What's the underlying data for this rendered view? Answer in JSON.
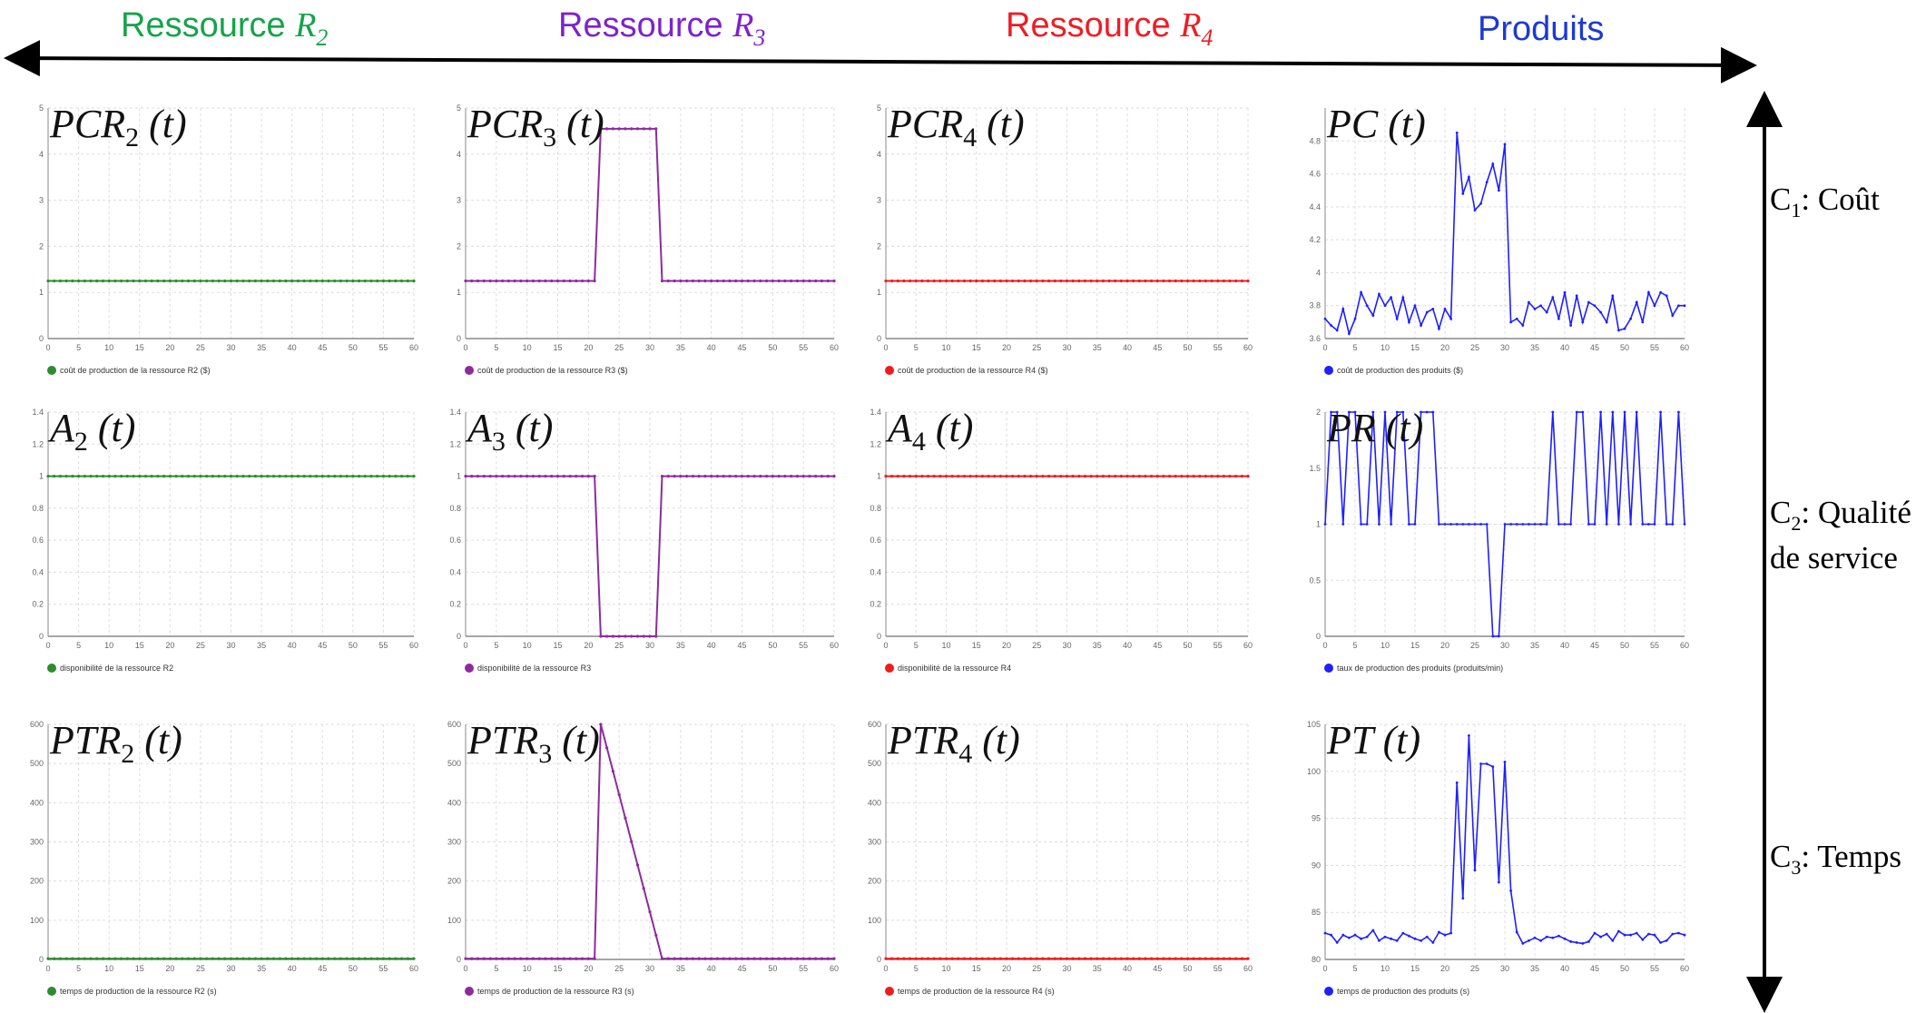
{
  "headers": {
    "columns": [
      {
        "text": "Ressource ",
        "sym": "R",
        "sub": "2",
        "color": "#16a34a"
      },
      {
        "text": "Ressource ",
        "sym": "R",
        "sub": "3",
        "color": "#7e22ce"
      },
      {
        "text": "Ressource ",
        "sym": "R",
        "sub": "4",
        "color": "#ef1c24"
      },
      {
        "text": "Produits",
        "sym": "",
        "sub": "",
        "color": "#1d39d4"
      }
    ],
    "rows": [
      {
        "lines": [
          {
            "pre": "C",
            "sub": "1",
            "post": ": Coût"
          }
        ]
      },
      {
        "lines": [
          {
            "pre": "C",
            "sub": "2",
            "post": ": Qualité"
          },
          {
            "pre": "de service",
            "sub": "",
            "post": ""
          }
        ]
      },
      {
        "lines": [
          {
            "pre": "C",
            "sub": "3",
            "post": ":  Temps"
          }
        ]
      }
    ]
  },
  "colors": {
    "r2": "#2e8b2e",
    "r3": "#8e2a9e",
    "r4": "#ee1c1c",
    "prod": "#1f1fff",
    "axis": "#888888",
    "grid": "#dddddd"
  },
  "chart_data": [
    {
      "id": "pcr2",
      "type": "line",
      "label": {
        "base": "PCR",
        "sub": "2",
        "post": " (t)"
      },
      "legend": "coût de production de la ressource R2 ($)",
      "color": "#2e8b2e",
      "xlim": [
        0,
        60
      ],
      "ylim": [
        0,
        5
      ],
      "yticks": [
        0,
        1,
        2,
        3,
        4,
        5
      ],
      "x": [
        0,
        60
      ],
      "values": [
        1.25,
        1.25
      ]
    },
    {
      "id": "pcr3",
      "type": "line",
      "label": {
        "base": "PCR",
        "sub": "3",
        "post": " (t)"
      },
      "legend": "coût de production de la ressource R3 ($)",
      "color": "#8e2a9e",
      "xlim": [
        0,
        60
      ],
      "ylim": [
        0,
        5
      ],
      "yticks": [
        0,
        1,
        2,
        3,
        4,
        5
      ],
      "x": [
        0,
        21,
        22,
        31,
        32,
        60
      ],
      "values": [
        1.25,
        1.25,
        4.55,
        4.55,
        1.25,
        1.25
      ]
    },
    {
      "id": "pcr4",
      "type": "line",
      "label": {
        "base": "PCR",
        "sub": "4",
        "post": " (t)"
      },
      "legend": "coût de production de la ressource R4 ($)",
      "color": "#ee1c1c",
      "xlim": [
        0,
        60
      ],
      "ylim": [
        0,
        5
      ],
      "yticks": [
        0,
        1,
        2,
        3,
        4,
        5
      ],
      "x": [
        0,
        60
      ],
      "values": [
        1.25,
        1.25
      ]
    },
    {
      "id": "pc",
      "type": "line",
      "label": {
        "base": "PC",
        "sub": "",
        "post": "  (t)"
      },
      "legend": "coût de production des produits ($)",
      "color": "#1f1fff",
      "xlim": [
        0,
        60
      ],
      "ylim": [
        3.6,
        5
      ],
      "yticks": [
        3.6,
        3.8,
        4,
        4.2,
        4.4,
        4.6,
        4.8
      ],
      "ytick_labels": [
        "3.6",
        "3.8",
        "4",
        "4.2",
        "4.4",
        "4.6",
        "4.8"
      ],
      "x": [
        0,
        1,
        2,
        3,
        4,
        5,
        6,
        7,
        8,
        9,
        10,
        11,
        12,
        13,
        14,
        15,
        16,
        17,
        18,
        19,
        20,
        21,
        22,
        23,
        24,
        25,
        26,
        27,
        28,
        29,
        30,
        31,
        32,
        33,
        34,
        35,
        36,
        37,
        38,
        39,
        40,
        41,
        42,
        43,
        44,
        45,
        46,
        47,
        48,
        49,
        50,
        51,
        52,
        53,
        54,
        55,
        56,
        57,
        58,
        59,
        60
      ],
      "values": [
        3.72,
        3.68,
        3.65,
        3.78,
        3.63,
        3.72,
        3.88,
        3.8,
        3.74,
        3.87,
        3.8,
        3.85,
        3.72,
        3.85,
        3.7,
        3.8,
        3.68,
        3.76,
        3.78,
        3.66,
        3.78,
        3.72,
        4.85,
        4.48,
        4.58,
        4.38,
        4.42,
        4.55,
        4.66,
        4.5,
        4.78,
        3.7,
        3.72,
        3.68,
        3.82,
        3.78,
        3.8,
        3.76,
        3.85,
        3.72,
        3.88,
        3.68,
        3.86,
        3.7,
        3.82,
        3.8,
        3.76,
        3.7,
        3.86,
        3.65,
        3.66,
        3.72,
        3.82,
        3.7,
        3.88,
        3.8,
        3.88,
        3.86,
        3.74,
        3.8,
        3.8
      ]
    },
    {
      "id": "a2",
      "type": "line",
      "label": {
        "base": "A",
        "sub": "2",
        "post": " (t)"
      },
      "legend": "disponibilité de la ressource R2",
      "color": "#2e8b2e",
      "xlim": [
        0,
        60
      ],
      "ylim": [
        0,
        1.4
      ],
      "yticks": [
        0,
        0.2,
        0.4,
        0.6,
        0.8,
        1,
        1.2,
        1.4
      ],
      "ytick_labels": [
        "0",
        "0.2",
        "0.4",
        "0.6",
        "0.8",
        "1",
        "1.2",
        "1.4"
      ],
      "x": [
        0,
        60
      ],
      "values": [
        1,
        1
      ]
    },
    {
      "id": "a3",
      "type": "line",
      "label": {
        "base": "A",
        "sub": "3",
        "post": " (t)"
      },
      "legend": "disponibilité de la ressource R3",
      "color": "#8e2a9e",
      "xlim": [
        0,
        60
      ],
      "ylim": [
        0,
        1.4
      ],
      "yticks": [
        0,
        0.2,
        0.4,
        0.6,
        0.8,
        1,
        1.2,
        1.4
      ],
      "ytick_labels": [
        "0",
        "0.2",
        "0.4",
        "0.6",
        "0.8",
        "1",
        "1.2",
        "1.4"
      ],
      "x": [
        0,
        21,
        22,
        31,
        32,
        60
      ],
      "values": [
        1,
        1,
        0,
        0,
        1,
        1
      ]
    },
    {
      "id": "a4",
      "type": "line",
      "label": {
        "base": "A",
        "sub": "4",
        "post": " (t)"
      },
      "legend": "disponibilité de la ressource R4",
      "color": "#ee1c1c",
      "xlim": [
        0,
        60
      ],
      "ylim": [
        0,
        1.4
      ],
      "yticks": [
        0,
        0.2,
        0.4,
        0.6,
        0.8,
        1,
        1.2,
        1.4
      ],
      "ytick_labels": [
        "0",
        "0.2",
        "0.4",
        "0.6",
        "0.8",
        "1",
        "1.2",
        "1.4"
      ],
      "x": [
        0,
        60
      ],
      "values": [
        1,
        1
      ]
    },
    {
      "id": "pr",
      "type": "line",
      "label": {
        "base": "PR",
        "sub": "",
        "post": "  (t)"
      },
      "legend": "taux de production des produits (produits/min)",
      "color": "#1f1fff",
      "xlim": [
        0,
        60
      ],
      "ylim": [
        0,
        2
      ],
      "yticks": [
        0,
        0.5,
        1,
        1.5,
        2
      ],
      "ytick_labels": [
        "0",
        "0.5",
        "1",
        "1.5",
        "2"
      ],
      "x": [
        0,
        1,
        2,
        3,
        4,
        5,
        6,
        7,
        8,
        9,
        10,
        11,
        12,
        13,
        14,
        15,
        16,
        17,
        18,
        19,
        20,
        21,
        22,
        23,
        24,
        25,
        26,
        27,
        28,
        29,
        30,
        31,
        32,
        33,
        34,
        35,
        36,
        37,
        38,
        39,
        40,
        41,
        42,
        43,
        44,
        45,
        46,
        47,
        48,
        49,
        50,
        51,
        52,
        53,
        54,
        55,
        56,
        57,
        58,
        59,
        60
      ],
      "values": [
        1,
        2,
        2,
        1,
        2,
        2,
        1,
        1,
        2,
        1,
        2,
        1,
        2,
        2,
        1,
        1,
        2,
        2,
        2,
        1,
        1,
        1,
        1,
        1,
        1,
        1,
        1,
        1,
        0,
        0,
        1,
        1,
        1,
        1,
        1,
        1,
        1,
        1,
        2,
        1,
        1,
        1,
        2,
        2,
        1,
        1,
        2,
        1,
        2,
        1,
        2,
        1,
        2,
        1,
        1,
        1,
        2,
        1,
        1,
        2,
        1
      ]
    },
    {
      "id": "ptr2",
      "type": "line",
      "label": {
        "base": "PTR",
        "sub": "2",
        "post": " (t)"
      },
      "legend": "temps de production de la ressource R2 (s)",
      "color": "#2e8b2e",
      "xlim": [
        0,
        60
      ],
      "ylim": [
        0,
        600
      ],
      "yticks": [
        0,
        100,
        200,
        300,
        400,
        500,
        600
      ],
      "x": [
        0,
        60
      ],
      "values": [
        2,
        2
      ]
    },
    {
      "id": "ptr3",
      "type": "line",
      "label": {
        "base": "PTR",
        "sub": "3",
        "post": " (t)"
      },
      "legend": "temps de production de la ressource R3 (s)",
      "color": "#8e2a9e",
      "xlim": [
        0,
        60
      ],
      "ylim": [
        0,
        600
      ],
      "yticks": [
        0,
        100,
        200,
        300,
        400,
        500,
        600
      ],
      "x": [
        0,
        21,
        22,
        32,
        33,
        60
      ],
      "values": [
        2,
        2,
        600,
        2,
        2,
        2
      ]
    },
    {
      "id": "ptr4",
      "type": "line",
      "label": {
        "base": "PTR",
        "sub": "4",
        "post": " (t)"
      },
      "legend": "temps de production de la ressource R4 (s)",
      "color": "#ee1c1c",
      "xlim": [
        0,
        60
      ],
      "ylim": [
        0,
        600
      ],
      "yticks": [
        0,
        100,
        200,
        300,
        400,
        500,
        600
      ],
      "x": [
        0,
        60
      ],
      "values": [
        2,
        2
      ]
    },
    {
      "id": "pt",
      "type": "line",
      "label": {
        "base": "PT",
        "sub": "",
        "post": " (t)"
      },
      "legend": "temps de production des produits (s)",
      "color": "#1f1fff",
      "xlim": [
        0,
        60
      ],
      "ylim": [
        80,
        105
      ],
      "yticks": [
        80,
        85,
        90,
        95,
        100,
        105
      ],
      "x": [
        0,
        1,
        2,
        3,
        4,
        5,
        6,
        7,
        8,
        9,
        10,
        11,
        12,
        13,
        14,
        15,
        16,
        17,
        18,
        19,
        20,
        21,
        22,
        23,
        24,
        25,
        26,
        27,
        28,
        29,
        30,
        31,
        32,
        33,
        34,
        35,
        36,
        37,
        38,
        39,
        40,
        41,
        42,
        43,
        44,
        45,
        46,
        47,
        48,
        49,
        50,
        51,
        52,
        53,
        54,
        55,
        56,
        57,
        58,
        59,
        60
      ],
      "values": [
        82.8,
        82.6,
        81.8,
        82.6,
        82.3,
        82.6,
        82.2,
        82.4,
        83.1,
        82.0,
        82.4,
        82.2,
        82.0,
        82.8,
        82.5,
        82.2,
        82.0,
        82.4,
        81.8,
        82.9,
        82.6,
        82.8,
        98.8,
        86.5,
        103.8,
        89.5,
        100.8,
        100.8,
        100.5,
        88.2,
        101.0,
        87.3,
        82.9,
        81.7,
        82.0,
        82.3,
        82.0,
        82.4,
        82.3,
        82.5,
        82.2,
        81.9,
        81.8,
        81.7,
        81.9,
        82.8,
        82.4,
        82.7,
        82.0,
        83.0,
        82.6,
        82.6,
        82.8,
        82.1,
        82.7,
        82.6,
        81.8,
        82.0,
        82.7,
        82.8,
        82.6
      ]
    }
  ]
}
